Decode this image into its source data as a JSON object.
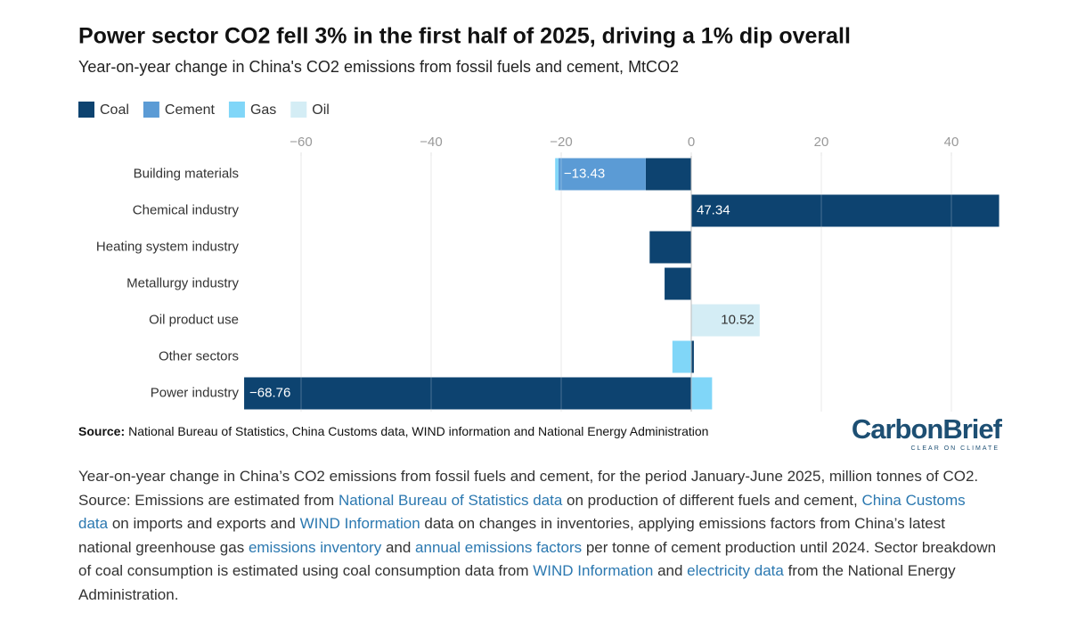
{
  "chart_data": {
    "type": "bar",
    "orientation": "horizontal",
    "stacked": true,
    "title": "Power sector CO2 fell 3% in the first half of 2025, driving a 1% dip overall",
    "subtitle": "Year-on-year change in China's CO2 emissions from fossil fuels and cement, MtCO2",
    "categories": [
      "Building materials",
      "Chemical industry",
      "Heating system industry",
      "Metallurgy industry",
      "Oil product use",
      "Other sectors",
      "Power industry"
    ],
    "series": [
      {
        "name": "Coal",
        "color": "#0d4370",
        "values": [
          -7.0,
          47.34,
          -6.4,
          -4.1,
          null,
          0.4,
          -68.76
        ],
        "value_labels": [
          null,
          "47.34",
          null,
          null,
          null,
          null,
          "−68.76"
        ]
      },
      {
        "name": "Cement",
        "color": "#5b9bd5",
        "values": [
          -13.43,
          null,
          null,
          null,
          null,
          null,
          null
        ],
        "value_labels": [
          "−13.43",
          null,
          null,
          null,
          null,
          null,
          null
        ]
      },
      {
        "name": "Gas",
        "color": "#80d6f8",
        "values": [
          -0.5,
          null,
          null,
          null,
          null,
          -2.9,
          3.2
        ]
      },
      {
        "name": "Oil",
        "color": "#d4edf5",
        "values": [
          null,
          null,
          null,
          null,
          10.52,
          null,
          null
        ],
        "value_labels": [
          null,
          null,
          null,
          null,
          "10.52",
          null,
          null
        ]
      }
    ],
    "xlim": [
      -69,
      48
    ],
    "xticks": [
      {
        "value": -60,
        "label": "−60"
      },
      {
        "value": -40,
        "label": "−40"
      },
      {
        "value": -20,
        "label": "−20"
      },
      0,
      20,
      40
    ],
    "grid": true,
    "legend": "top-left",
    "source": {
      "label": "Source:",
      "text": "National Bureau of Statistics, China Customs data, WIND information and National Energy Administration"
    }
  },
  "logo": {
    "name": "CarbonBrief",
    "tagline": "CLEAR ON CLIMATE"
  },
  "caption": [
    {
      "text": "Year-on-year change in China’s CO2 emissions from fossil fuels and cement, for the period January-June 2025, million tonnes of CO2. Source: Emissions are estimated from ",
      "link": false
    },
    {
      "text": "National Bureau of Statistics data",
      "link": true
    },
    {
      "text": " on production of different fuels and cement, ",
      "link": false
    },
    {
      "text": "China Customs data",
      "link": true
    },
    {
      "text": " on imports and exports and ",
      "link": false
    },
    {
      "text": "WIND Information",
      "link": true
    },
    {
      "text": " data on changes in inventories, applying emissions factors from China’s latest national greenhouse gas ",
      "link": false
    },
    {
      "text": "emissions inventory",
      "link": true
    },
    {
      "text": " and ",
      "link": false
    },
    {
      "text": "annual emissions factors",
      "link": true
    },
    {
      "text": " per tonne of cement production until 2024. Sector breakdown of coal consumption is estimated using coal consumption data from ",
      "link": false
    },
    {
      "text": "WIND Information",
      "link": true
    },
    {
      "text": " and ",
      "link": false
    },
    {
      "text": "electricity data",
      "link": true
    },
    {
      "text": " from the National Energy Administration.",
      "link": false
    }
  ]
}
